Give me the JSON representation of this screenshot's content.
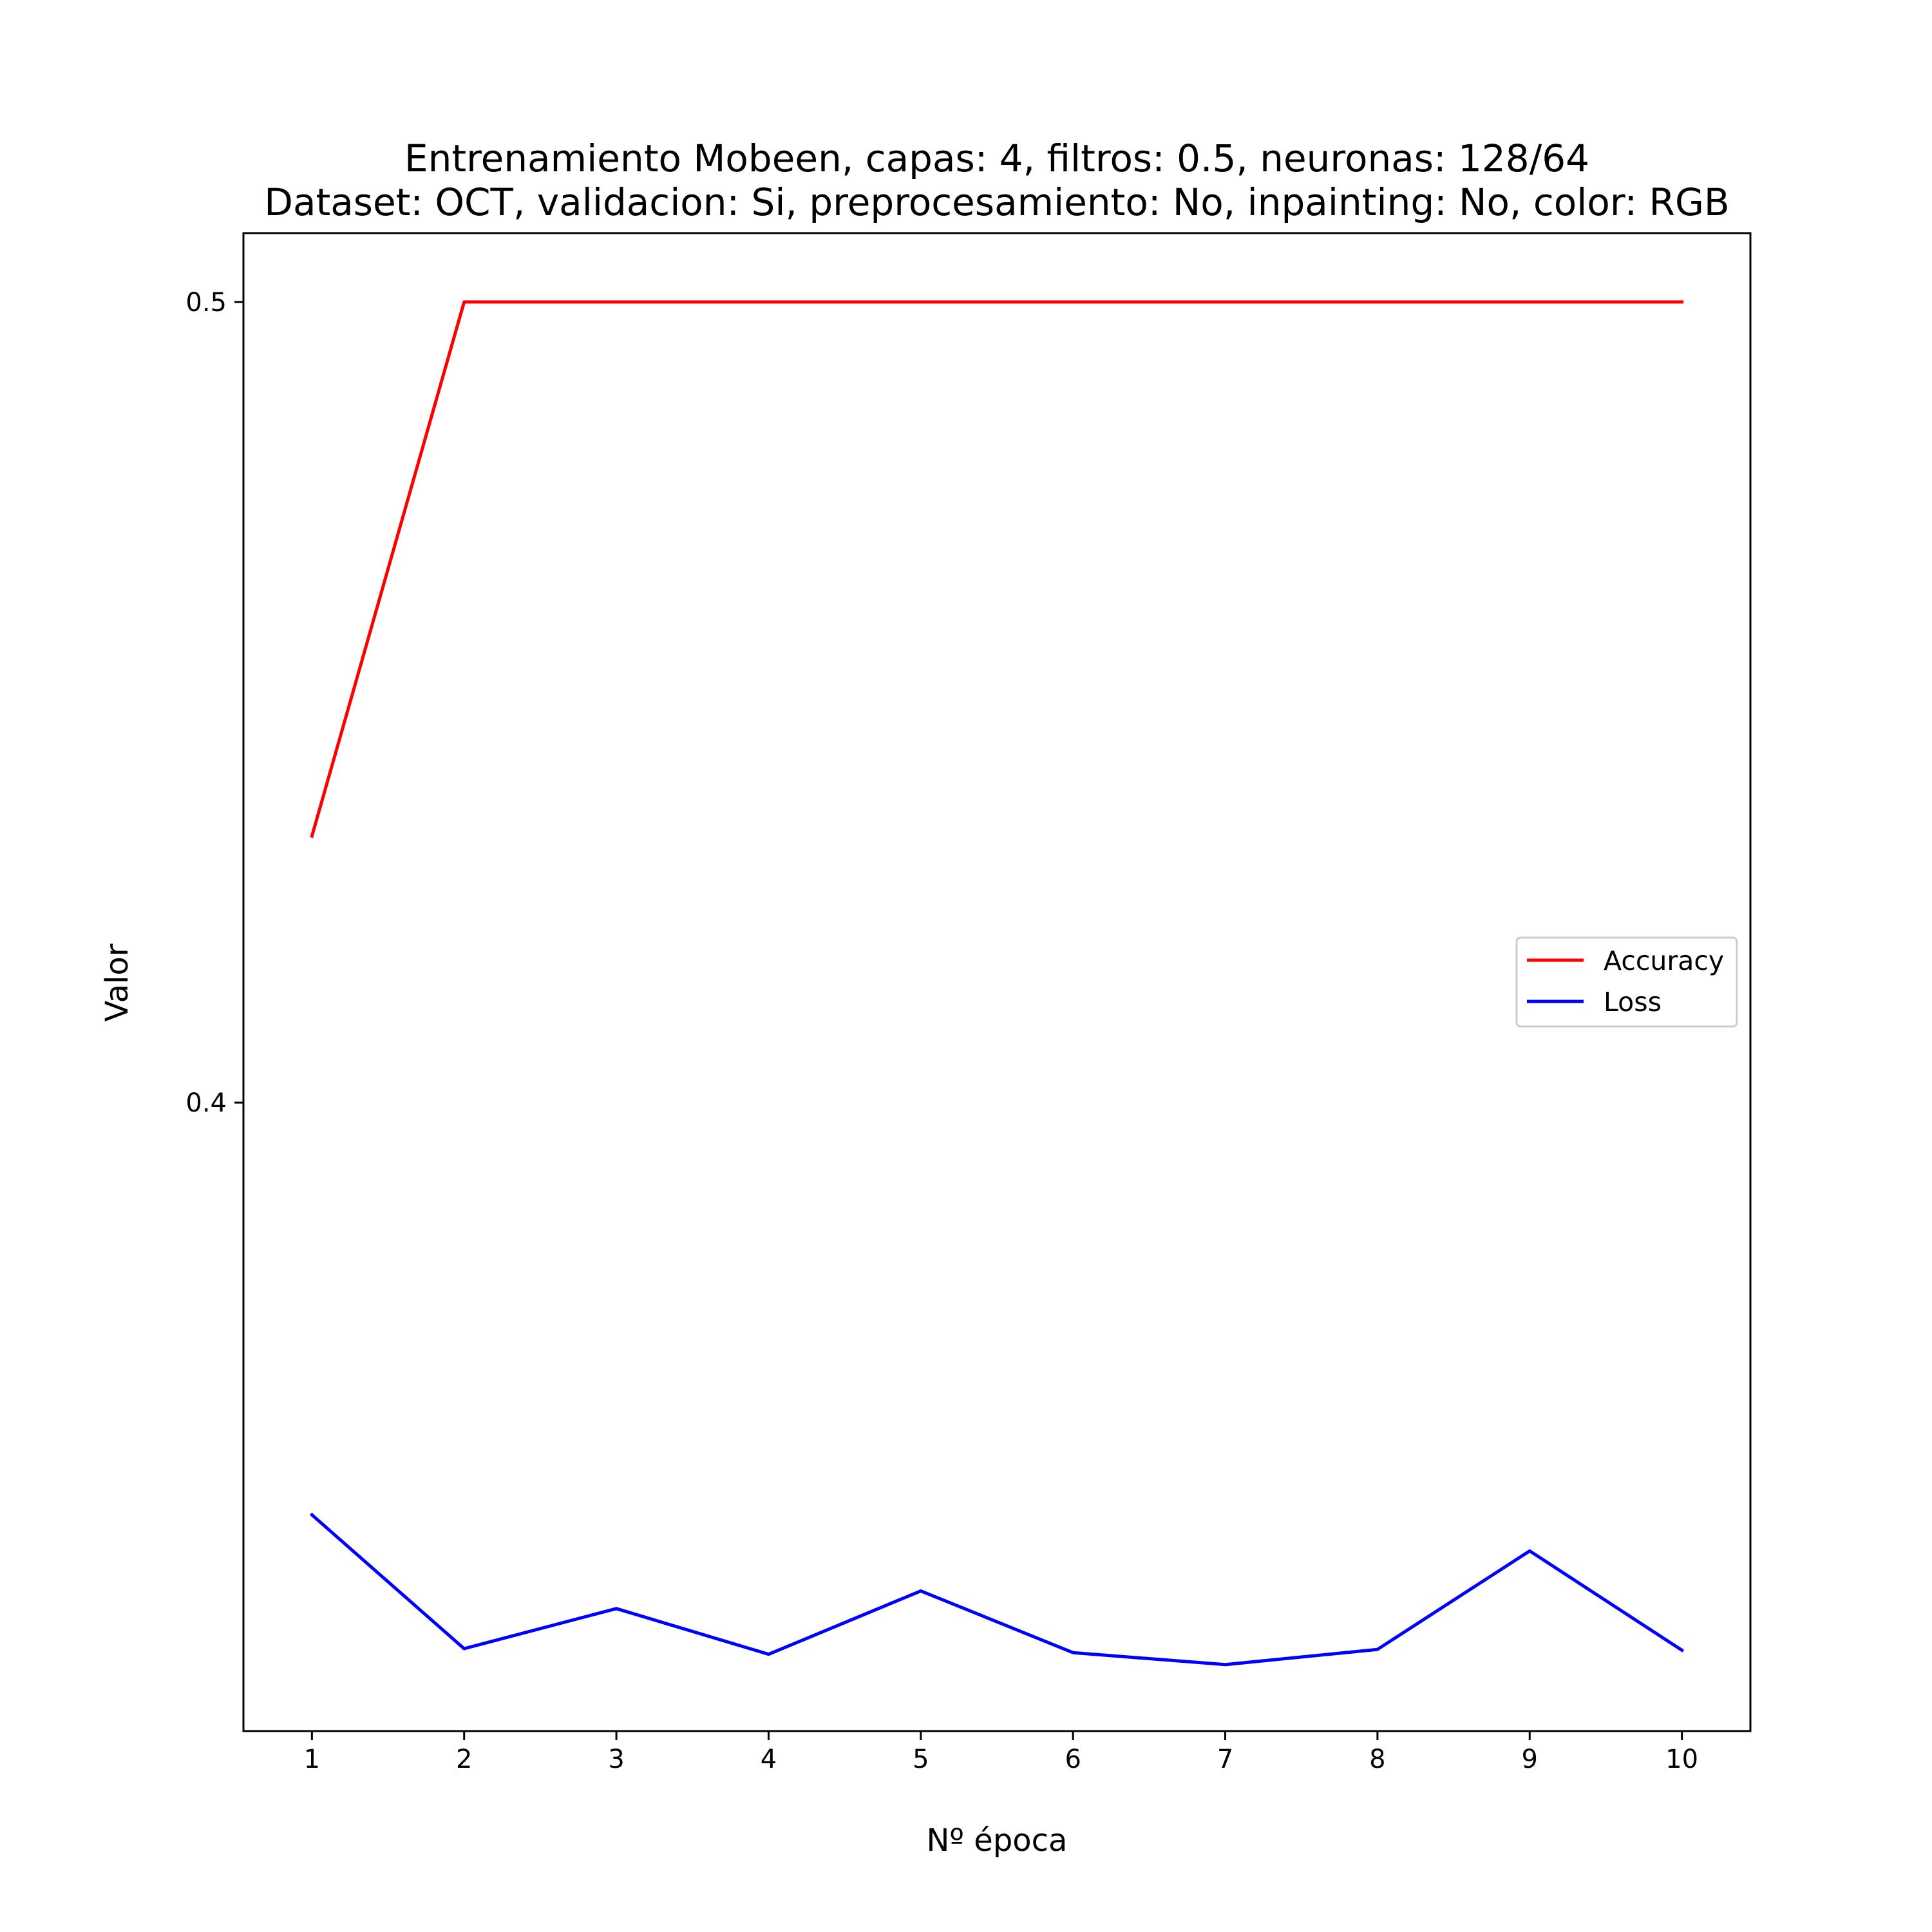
{
  "chart_data": {
    "type": "line",
    "title": "Entrenamiento Mobeen, capas: 4, filtros: 0.5, neuronas: 128/64",
    "subtitle": "Dataset: OCT, validacion: Si, preprocesamiento: No, inpainting: No, color: RGB",
    "xlabel": "Nº época",
    "ylabel": "Valor",
    "x": [
      1,
      2,
      3,
      4,
      5,
      6,
      7,
      8,
      9,
      10
    ],
    "xticks": [
      "1",
      "2",
      "3",
      "4",
      "5",
      "6",
      "7",
      "8",
      "9",
      "10"
    ],
    "yticks": [
      {
        "value": 0.4,
        "label": "0.4"
      },
      {
        "value": 0.5,
        "label": "0.5"
      }
    ],
    "xlim": [
      0.55,
      10.45
    ],
    "ylim": [
      0.3215,
      0.5086
    ],
    "grid": false,
    "legend_position": "center-right",
    "series": [
      {
        "name": "Accuracy",
        "color": "#ff0000",
        "values": [
          0.4333,
          0.5,
          0.5,
          0.5,
          0.5,
          0.5,
          0.5,
          0.5,
          0.5,
          0.5
        ]
      },
      {
        "name": "Loss",
        "color": "#0000ff",
        "values": [
          0.3485,
          0.3318,
          0.3368,
          0.3311,
          0.339,
          0.3313,
          0.3298,
          0.3317,
          0.344,
          0.3316
        ]
      }
    ]
  }
}
